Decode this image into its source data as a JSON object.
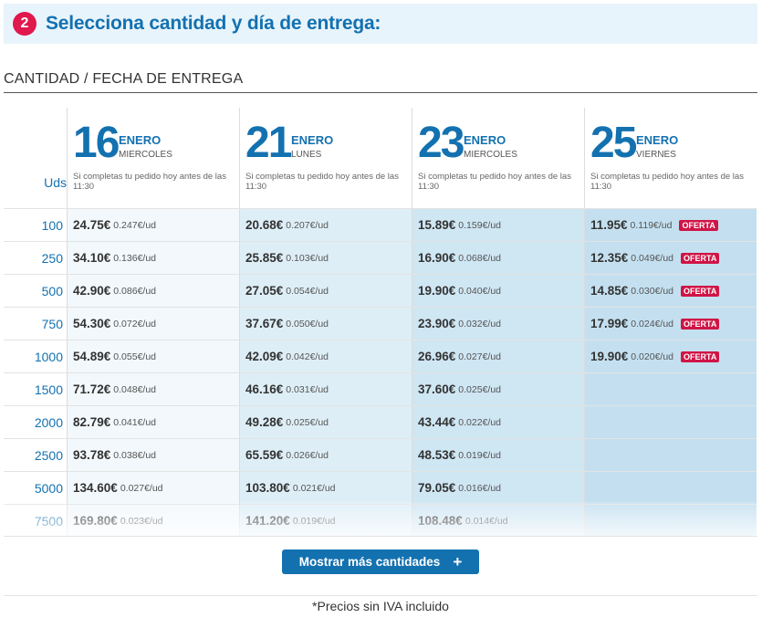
{
  "step": {
    "number": "2",
    "title": "Selecciona cantidad y día de entrega:"
  },
  "section_label": "CANTIDAD / FECHA DE ENTREGA",
  "uds_header": "Uds",
  "quantities": [
    "100",
    "250",
    "500",
    "750",
    "1000",
    "1500",
    "2000",
    "2500",
    "5000",
    "7500"
  ],
  "dates": [
    {
      "day": "16",
      "month": "ENERO",
      "weekday": "MIERCOLES",
      "note": "Si completas tu pedido hoy antes de las 11:30",
      "rows": [
        {
          "price": "24.75€",
          "unit": "0.247€/ud",
          "badge": ""
        },
        {
          "price": "34.10€",
          "unit": "0.136€/ud",
          "badge": ""
        },
        {
          "price": "42.90€",
          "unit": "0.086€/ud",
          "badge": ""
        },
        {
          "price": "54.30€",
          "unit": "0.072€/ud",
          "badge": ""
        },
        {
          "price": "54.89€",
          "unit": "0.055€/ud",
          "badge": ""
        },
        {
          "price": "71.72€",
          "unit": "0.048€/ud",
          "badge": ""
        },
        {
          "price": "82.79€",
          "unit": "0.041€/ud",
          "badge": ""
        },
        {
          "price": "93.78€",
          "unit": "0.038€/ud",
          "badge": ""
        },
        {
          "price": "134.60€",
          "unit": "0.027€/ud",
          "badge": ""
        },
        {
          "price": "169.80€",
          "unit": "0.023€/ud",
          "badge": ""
        }
      ]
    },
    {
      "day": "21",
      "month": "ENERO",
      "weekday": "LUNES",
      "note": "Si completas tu pedido hoy antes de las 11:30",
      "rows": [
        {
          "price": "20.68€",
          "unit": "0.207€/ud",
          "badge": ""
        },
        {
          "price": "25.85€",
          "unit": "0.103€/ud",
          "badge": ""
        },
        {
          "price": "27.05€",
          "unit": "0.054€/ud",
          "badge": ""
        },
        {
          "price": "37.67€",
          "unit": "0.050€/ud",
          "badge": ""
        },
        {
          "price": "42.09€",
          "unit": "0.042€/ud",
          "badge": ""
        },
        {
          "price": "46.16€",
          "unit": "0.031€/ud",
          "badge": ""
        },
        {
          "price": "49.28€",
          "unit": "0.025€/ud",
          "badge": ""
        },
        {
          "price": "65.59€",
          "unit": "0.026€/ud",
          "badge": ""
        },
        {
          "price": "103.80€",
          "unit": "0.021€/ud",
          "badge": ""
        },
        {
          "price": "141.20€",
          "unit": "0.019€/ud",
          "badge": ""
        }
      ]
    },
    {
      "day": "23",
      "month": "ENERO",
      "weekday": "MIERCOLES",
      "note": "Si completas tu pedido hoy antes de las 11:30",
      "rows": [
        {
          "price": "15.89€",
          "unit": "0.159€/ud",
          "badge": ""
        },
        {
          "price": "16.90€",
          "unit": "0.068€/ud",
          "badge": ""
        },
        {
          "price": "19.90€",
          "unit": "0.040€/ud",
          "badge": ""
        },
        {
          "price": "23.90€",
          "unit": "0.032€/ud",
          "badge": ""
        },
        {
          "price": "26.96€",
          "unit": "0.027€/ud",
          "badge": ""
        },
        {
          "price": "37.60€",
          "unit": "0.025€/ud",
          "badge": ""
        },
        {
          "price": "43.44€",
          "unit": "0.022€/ud",
          "badge": ""
        },
        {
          "price": "48.53€",
          "unit": "0.019€/ud",
          "badge": ""
        },
        {
          "price": "79.05€",
          "unit": "0.016€/ud",
          "badge": ""
        },
        {
          "price": "108.48€",
          "unit": "0.014€/ud",
          "badge": ""
        }
      ]
    },
    {
      "day": "25",
      "month": "ENERO",
      "weekday": "VIERNES",
      "note": "Si completas tu pedido hoy antes de las 11:30",
      "rows": [
        {
          "price": "11.95€",
          "unit": "0.119€/ud",
          "badge": "OFERTA"
        },
        {
          "price": "12.35€",
          "unit": "0.049€/ud",
          "badge": "OFERTA"
        },
        {
          "price": "14.85€",
          "unit": "0.030€/ud",
          "badge": "OFERTA"
        },
        {
          "price": "17.99€",
          "unit": "0.024€/ud",
          "badge": "OFERTA"
        },
        {
          "price": "19.90€",
          "unit": "0.020€/ud",
          "badge": "OFERTA"
        },
        {
          "price": "",
          "unit": "",
          "badge": ""
        },
        {
          "price": "",
          "unit": "",
          "badge": ""
        },
        {
          "price": "",
          "unit": "",
          "badge": ""
        },
        {
          "price": "",
          "unit": "",
          "badge": ""
        },
        {
          "price": "",
          "unit": "",
          "badge": ""
        }
      ]
    }
  ],
  "more_button_label": "Mostrar más cantidades",
  "footer_note": "*Precios sin IVA incluido",
  "colors": {
    "brand_blue": "#1371b0",
    "accent_red": "#e0184d",
    "header_bg": "#e8f4fb"
  }
}
